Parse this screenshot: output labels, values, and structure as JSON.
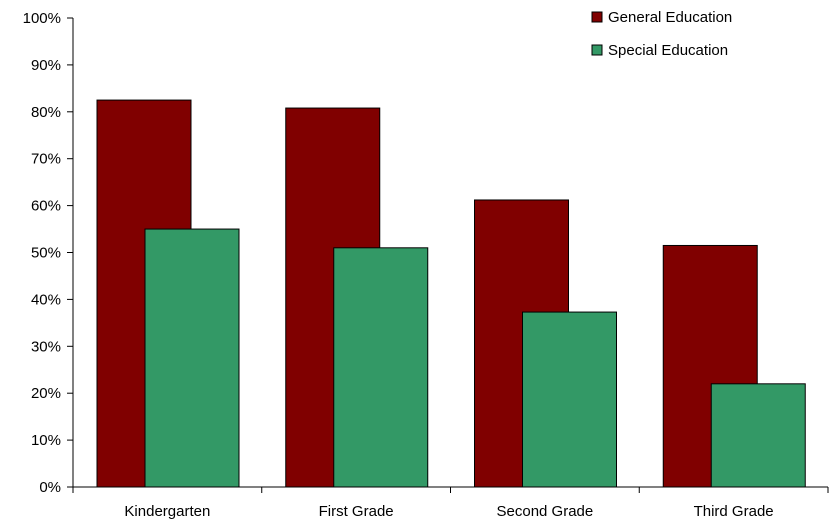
{
  "chart_data": {
    "type": "bar",
    "categories": [
      "Kindergarten",
      "First Grade",
      "Second Grade",
      "Third Grade"
    ],
    "series": [
      {
        "name": "General Education",
        "values": [
          82.5,
          80.8,
          61.2,
          51.5
        ],
        "color": "#800000"
      },
      {
        "name": "Special Education",
        "values": [
          55.0,
          51.0,
          37.3,
          22.0
        ],
        "color": "#339966"
      }
    ],
    "ylim": [
      0,
      100
    ],
    "yticks": [
      0,
      10,
      20,
      30,
      40,
      50,
      60,
      70,
      80,
      90,
      100
    ],
    "ytick_labels": [
      "0%",
      "10%",
      "20%",
      "30%",
      "40%",
      "50%",
      "60%",
      "70%",
      "80%",
      "90%",
      "100%"
    ],
    "grid": false,
    "legend_position": "top-right",
    "bar_layout": "overlapping"
  }
}
